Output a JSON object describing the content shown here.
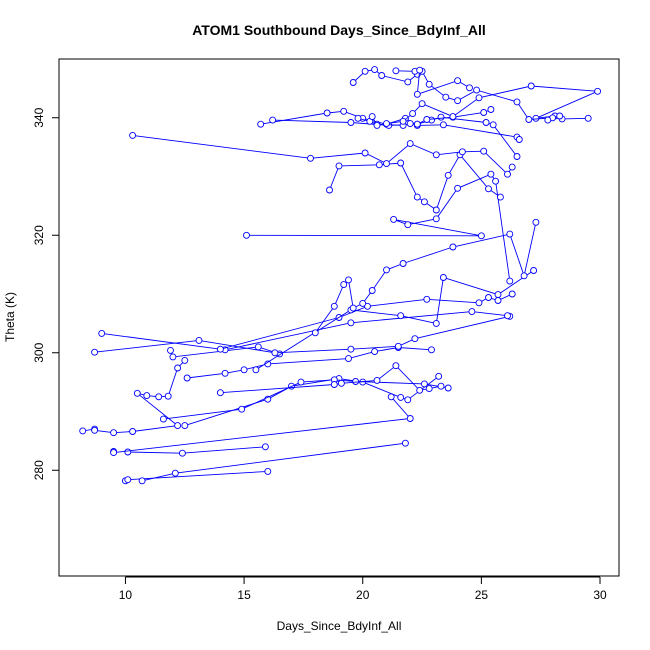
{
  "chart_data": {
    "type": "line",
    "title": "ATOM1 Southbound Days_Since_BdyInf_All",
    "xlabel": "Days_Since_BdyInf_All",
    "ylabel": "Theta (K)",
    "xlim": [
      7.2,
      30.8
    ],
    "ylim": [
      262,
      350
    ],
    "xticks": [
      10,
      15,
      20,
      25,
      30
    ],
    "yticks": [
      280,
      300,
      320,
      340
    ],
    "xtick_labels": [
      "10",
      "15",
      "20",
      "25",
      "30"
    ],
    "ytick_labels": [
      "280",
      "300",
      "320",
      "340"
    ],
    "grid": false,
    "legend": "none",
    "series_color": "#0000ff",
    "markers": "open-circle",
    "series": [
      {
        "x": [
          10.0,
          10.1,
          16.0
        ],
        "y": [
          278.2,
          278.4,
          279.8
        ]
      },
      {
        "x": [
          10.7,
          12.1,
          21.8
        ],
        "y": [
          278.2,
          279.5,
          284.6
        ]
      },
      {
        "x": [
          10.1,
          12.4,
          15.9
        ],
        "y": [
          283.1,
          282.9,
          284.0
        ]
      },
      {
        "x": [
          9.5,
          9.5,
          22.0,
          21.2
        ],
        "y": [
          283.2,
          283.0,
          288.8,
          292.5
        ]
      },
      {
        "x": [
          8.2,
          8.7,
          8.7,
          9.5,
          10.3,
          12.2,
          10.5,
          10.9,
          11.4,
          11.8,
          12.2,
          12.5
        ],
        "y": [
          286.7,
          287.0,
          286.8,
          286.4,
          286.6,
          287.6,
          293.1,
          292.7,
          292.5,
          292.6,
          297.4,
          298.7
        ]
      },
      {
        "x": [
          12.5,
          16.0,
          17.0,
          19.0,
          20.0,
          21.6,
          21.9,
          23.2
        ],
        "y": [
          287.6,
          292.1,
          294.3,
          295.6,
          295.0,
          292.4,
          292.0,
          296.0
        ]
      },
      {
        "x": [
          11.6,
          14.9,
          17.4,
          18.8,
          19.7,
          22.6,
          23.6
        ],
        "y": [
          288.7,
          290.4,
          295.0,
          295.4,
          295.1,
          294.7,
          294.0
        ]
      },
      {
        "x": [
          14.0,
          18.8,
          19.1,
          20.6,
          21.4,
          22.4,
          22.8,
          23.3
        ],
        "y": [
          293.2,
          294.6,
          294.8,
          295.3,
          297.8,
          293.6,
          293.9,
          294.3
        ]
      },
      {
        "x": [
          12.6,
          14.2,
          15.0,
          16.0,
          19.4,
          20.5,
          21.5,
          22.9
        ],
        "y": [
          295.7,
          296.5,
          297.1,
          298.1,
          299.0,
          300.2,
          300.9,
          300.5
        ]
      },
      {
        "x": [
          11.9,
          12.0,
          15.6,
          16.5
        ],
        "y": [
          300.4,
          299.3,
          301.0,
          299.8
        ]
      },
      {
        "x": [
          8.7,
          13.1,
          16.3,
          19.5,
          21.5,
          22.2,
          26.2
        ],
        "y": [
          300.1,
          302.1,
          300.0,
          300.6,
          301.1,
          302.4,
          306.2
        ]
      },
      {
        "x": [
          9.0,
          14.2,
          19.5,
          24.6,
          26.1
        ],
        "y": [
          303.3,
          300.5,
          305.1,
          307.0,
          306.3
        ]
      },
      {
        "x": [
          14.0,
          19.0,
          20.2,
          22.7,
          24.9,
          25.3,
          25.7,
          26.3
        ],
        "y": [
          300.6,
          306.0,
          307.9,
          309.1,
          308.5,
          309.4,
          308.9,
          310.0
        ]
      },
      {
        "x": [
          15.5,
          19.5,
          21.6,
          23.1,
          23.4,
          25.7,
          27.2
        ],
        "y": [
          297.1,
          307.3,
          306.3,
          305.0,
          312.8,
          309.9,
          314.0
        ]
      },
      {
        "x": [
          18.0,
          18.8,
          19.2,
          19.4,
          19.6,
          20.0,
          20.4,
          21.0,
          21.7,
          23.8,
          26.2,
          26.8,
          27.3
        ],
        "y": [
          303.4,
          307.9,
          311.6,
          312.4,
          307.6,
          308.4,
          310.6,
          314.1,
          315.2,
          318.0,
          320.2,
          313.1,
          322.2
        ]
      },
      {
        "x": [
          15.1,
          25.0,
          21.3,
          21.9,
          23.1,
          24.0,
          25.4,
          25.6,
          26.2
        ],
        "y": [
          320.0,
          319.9,
          322.7,
          321.8,
          322.8,
          328.0,
          330.4,
          329.2,
          312.2
        ]
      },
      {
        "x": [
          18.6,
          19.0,
          20.7,
          21.6,
          22.3,
          22.6,
          23.1,
          23.6,
          24.1,
          25.3,
          25.8
        ],
        "y": [
          327.7,
          331.8,
          332.0,
          332.3,
          326.5,
          325.7,
          324.3,
          330.2,
          333.7,
          327.9,
          326.5
        ]
      },
      {
        "x": [
          10.3,
          17.8,
          20.1,
          21.0,
          22.0,
          23.1,
          24.2,
          25.1,
          26.1,
          26.3
        ],
        "y": [
          337.0,
          333.1,
          334.0,
          332.2,
          335.6,
          333.7,
          334.2,
          334.3,
          330.4,
          331.6
        ]
      },
      {
        "x": [
          15.7,
          18.5,
          19.2,
          20.0,
          21.0,
          21.8,
          22.3,
          23.4,
          26.5,
          26.6
        ],
        "y": [
          338.9,
          340.8,
          341.1,
          339.9,
          338.9,
          339.9,
          338.7,
          338.8,
          336.7,
          336.3
        ]
      },
      {
        "x": [
          16.2,
          19.5,
          21.1,
          22.3,
          22.9,
          23.3,
          25.2,
          25.5,
          26.5
        ],
        "y": [
          339.6,
          339.2,
          338.7,
          338.9,
          339.6,
          340.1,
          339.2,
          338.8,
          333.4
        ]
      },
      {
        "x": [
          19.8,
          20.3,
          20.6,
          21.7,
          22.0,
          22.3,
          22.7,
          23.8,
          25.1,
          25.4
        ],
        "y": [
          339.9,
          339.4,
          338.9,
          338.7,
          339.0,
          338.9,
          339.7,
          340.1,
          340.9,
          341.4
        ]
      },
      {
        "x": [
          20.4,
          20.6,
          21.0,
          21.7,
          22.1,
          22.5,
          23.8,
          24.9,
          27.1,
          29.9,
          27.3,
          28.1,
          28.4,
          29.5
        ],
        "y": [
          340.2,
          338.7,
          339.0,
          339.4,
          340.7,
          342.4,
          340.2,
          343.4,
          345.4,
          344.5,
          339.9,
          340.3,
          339.8,
          339.9
        ]
      },
      {
        "x": [
          19.6,
          20.1,
          20.5,
          20.8,
          21.9,
          22.3,
          22.5,
          22.8,
          23.5,
          24.0,
          24.8,
          26.5,
          27.0,
          28.0,
          28.3,
          27.8
        ],
        "y": [
          346.0,
          347.9,
          348.2,
          347.2,
          346.1,
          347.4,
          347.9,
          345.7,
          343.5,
          342.9,
          344.7,
          342.7,
          339.7,
          340.0,
          340.3,
          339.6
        ]
      },
      {
        "x": [
          21.4,
          22.2,
          22.4,
          22.3,
          24.0,
          24.5
        ],
        "y": [
          348.0,
          347.9,
          348.1,
          344.0,
          346.3,
          345.1
        ]
      }
    ]
  }
}
